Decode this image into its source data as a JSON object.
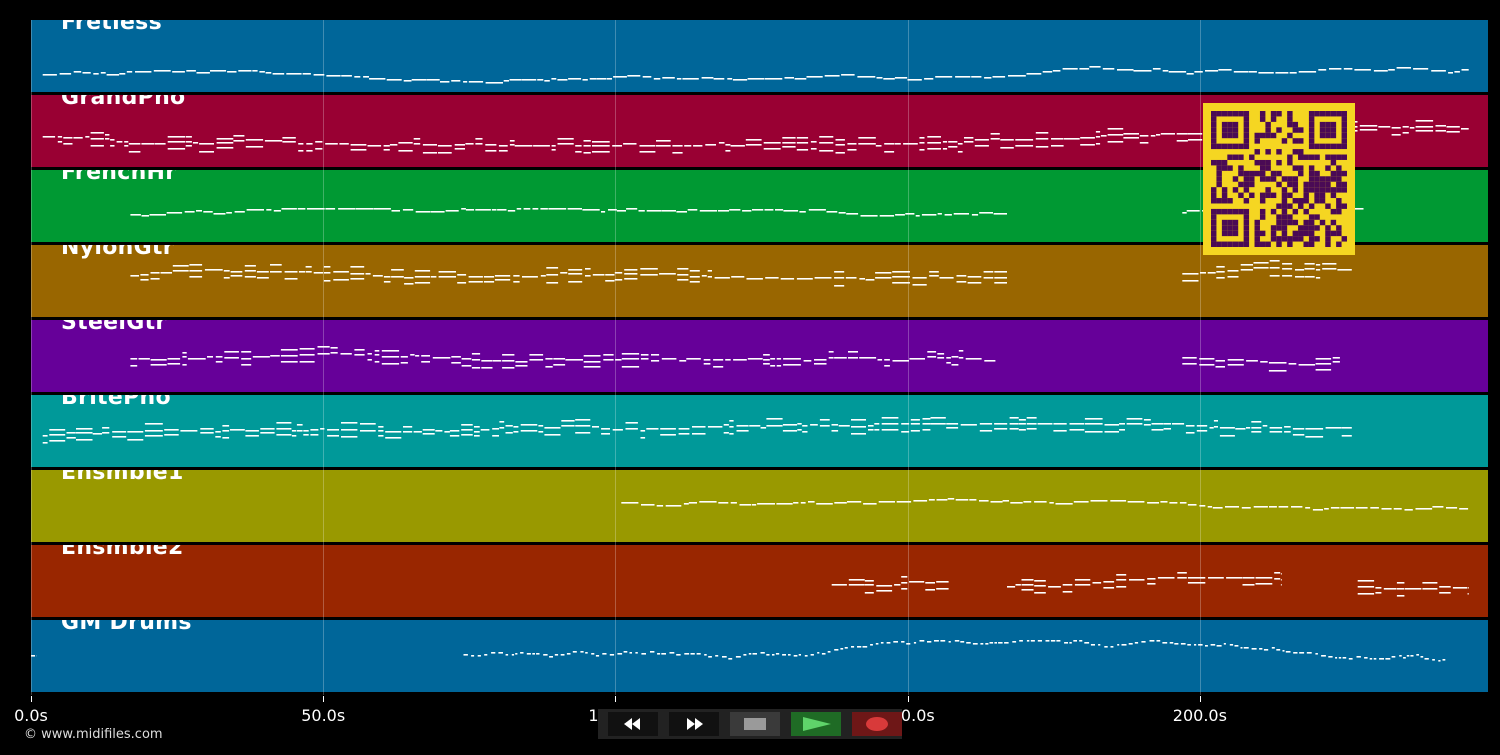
{
  "tracks": [
    {
      "name": "Fretless",
      "color": "#006699"
    },
    {
      "name": "GrandPno",
      "color": "#990033"
    },
    {
      "name": "FrenchHr",
      "color": "#009933"
    },
    {
      "name": "NylonGtr",
      "color": "#996600"
    },
    {
      "name": "SteelGtr",
      "color": "#660099"
    },
    {
      "name": "BritePno",
      "color": "#009999"
    },
    {
      "name": "Ensmble1",
      "color": "#999900"
    },
    {
      "name": "Ensmble2",
      "color": "#992600"
    },
    {
      "name": "GM Drums",
      "color": "#006699"
    }
  ],
  "axis": {
    "unit": "s",
    "ticks": [
      "0.0s",
      "50.0s",
      "100.0s",
      "150.0s",
      "200.0s"
    ],
    "tick_values": [
      0,
      50,
      100,
      150,
      200
    ],
    "max_seconds": 249.3
  },
  "copyright": "© www.midifiles.com",
  "transport": {
    "buttons": [
      {
        "name": "rewind-button",
        "icon": "rewind-icon"
      },
      {
        "name": "fast-forward-button",
        "icon": "fast-forward-icon"
      },
      {
        "name": "stop-button",
        "icon": "stop-icon"
      },
      {
        "name": "play-button",
        "icon": "play-icon"
      },
      {
        "name": "record-button",
        "icon": "record-icon"
      }
    ]
  },
  "colors": {
    "background": "#000000",
    "note": "#ffffff",
    "qr_background": "#f5d622",
    "qr_module": "#4a0a55",
    "play": "#2e7d32",
    "record": "#8b1e1e",
    "stop": "#444444"
  }
}
